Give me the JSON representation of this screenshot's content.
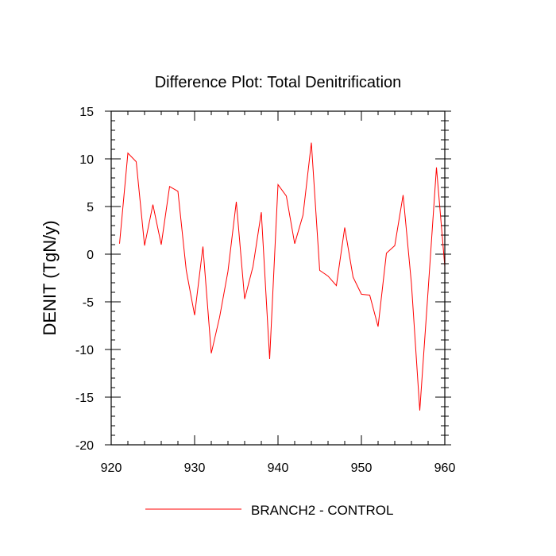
{
  "chart_data": {
    "type": "line",
    "title": "Difference Plot: Total Denitrification",
    "xlabel": "",
    "ylabel": "DENIT  (TgN/y)",
    "xlim": [
      920,
      960
    ],
    "ylim": [
      -20,
      15
    ],
    "x_ticks": [
      920,
      930,
      940,
      950,
      960
    ],
    "y_ticks": [
      15,
      10,
      5,
      0,
      -5,
      -10,
      -15,
      -20
    ],
    "grid": false,
    "legend_position": "bottom",
    "series": [
      {
        "name": "BRANCH2 - CONTROL",
        "color": "#ff0000",
        "x": [
          921,
          922,
          923,
          924,
          925,
          926,
          927,
          928,
          929,
          930,
          931,
          932,
          933,
          934,
          935,
          936,
          937,
          938,
          939,
          940,
          941,
          942,
          943,
          944,
          945,
          946,
          947,
          948,
          949,
          950,
          951,
          952,
          953,
          954,
          955,
          956,
          957,
          958,
          959,
          960
        ],
        "values": [
          1.1,
          10.6,
          9.7,
          0.9,
          5.2,
          1.0,
          7.1,
          6.6,
          -1.7,
          -6.4,
          0.8,
          -10.4,
          -6.6,
          -1.8,
          5.5,
          -4.7,
          -1.3,
          4.4,
          -11.0,
          7.3,
          6.1,
          1.1,
          4.1,
          11.7,
          -1.7,
          -2.3,
          -3.3,
          2.8,
          -2.4,
          -4.2,
          -4.3,
          -7.6,
          0.1,
          0.9,
          6.2,
          -3.1,
          -16.4,
          -3.8,
          9.1,
          -1.3
        ]
      }
    ]
  }
}
